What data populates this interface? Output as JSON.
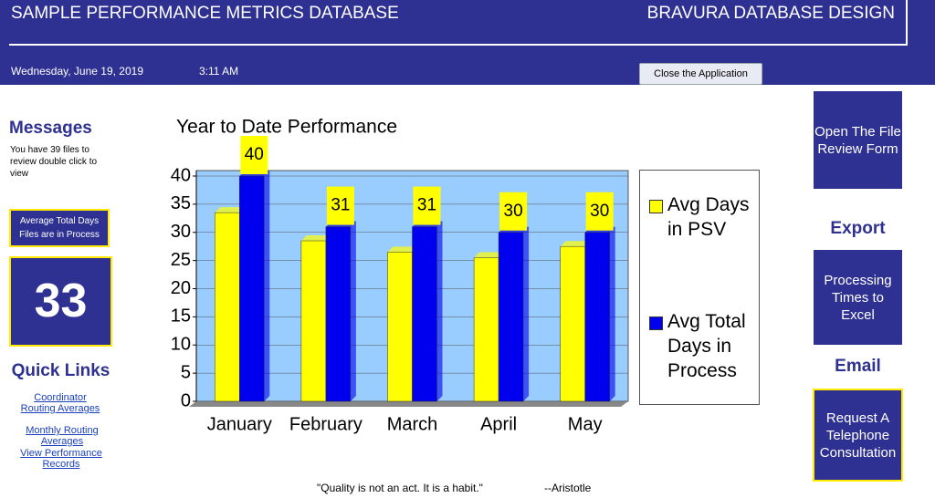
{
  "header": {
    "title": "SAMPLE PERFORMANCE METRICS DATABASE",
    "brand": "BRAVURA DATABASE DESIGN",
    "date": "Wednesday, June 19, 2019",
    "time": "3:11 AM",
    "close_button": "Close the Application"
  },
  "messages": {
    "heading": "Messages",
    "text": "You have 39 files to review double click to view"
  },
  "stat": {
    "label": "Average Total Days Files are in Process",
    "value": 33
  },
  "quick_links": {
    "heading": "Quick Links",
    "links": [
      "Coordinator Routing Averages",
      "Monthly Routing Averages",
      "View Performance Records"
    ]
  },
  "actions": {
    "open_form": "Open The File Review Form",
    "export_heading": "Export",
    "export_button": "Processing Times to Excel",
    "email_heading": "Email",
    "email_button": "Request A Telephone Consultation"
  },
  "quote": {
    "text": "\"Quality is not an act. It is a habit.\"",
    "author": "--Aristotle"
  },
  "chart_data": {
    "type": "bar",
    "title": "Year to Date Performance",
    "categories": [
      "January",
      "February",
      "March",
      "April",
      "May"
    ],
    "series": [
      {
        "name": "Avg Days in PSV",
        "color": "#ffff00",
        "values": [
          33.5,
          28.5,
          26.5,
          25.5,
          27.5
        ]
      },
      {
        "name": "Avg Total Days in Process",
        "color": "#0000ee",
        "values": [
          40,
          31,
          31,
          30,
          30
        ],
        "data_labels": true
      }
    ],
    "ylim": [
      0,
      40
    ],
    "yticks": [
      0,
      5,
      10,
      15,
      20,
      25,
      30,
      35,
      40
    ],
    "grid": true,
    "legend": "right"
  }
}
